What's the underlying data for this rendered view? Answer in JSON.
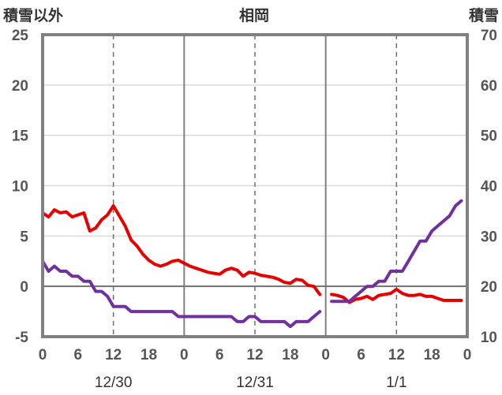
{
  "chart_data": {
    "type": "line",
    "title": "相岡",
    "ylabel_left": "積雪以外",
    "ylabel_right": "積雪",
    "y_left": {
      "min": -5,
      "max": 25,
      "ticks": [
        -5,
        0,
        5,
        10,
        15,
        20,
        25
      ]
    },
    "y_right": {
      "min": 10,
      "max": 70,
      "ticks": [
        10,
        20,
        30,
        40,
        50,
        60,
        70
      ]
    },
    "x": {
      "min": 0,
      "max": 72,
      "tick_hours": [
        0,
        6,
        12,
        18,
        24,
        30,
        36,
        42,
        48,
        54,
        60,
        66,
        72
      ],
      "tick_labels": [
        "0",
        "6",
        "12",
        "18",
        "0",
        "6",
        "12",
        "18",
        "0",
        "6",
        "12",
        "18",
        "0"
      ],
      "day_boundaries": [
        24,
        48
      ],
      "dashed_hours": [
        12,
        36,
        60
      ]
    },
    "date_labels": [
      {
        "label": "12/30",
        "hour": 12
      },
      {
        "label": "12/31",
        "hour": 36
      },
      {
        "label": "1/1",
        "hour": 60
      }
    ],
    "series": [
      {
        "color": "#e60000",
        "axis": "left",
        "segments": [
          [
            [
              0,
              7.3
            ],
            [
              1,
              6.9
            ],
            [
              2,
              7.6
            ],
            [
              3,
              7.3
            ],
            [
              4,
              7.4
            ],
            [
              5,
              6.9
            ],
            [
              6,
              7.1
            ],
            [
              7,
              7.3
            ],
            [
              8,
              5.5
            ],
            [
              9,
              5.8
            ],
            [
              10,
              6.6
            ],
            [
              11,
              7.1
            ],
            [
              12,
              8.0
            ],
            [
              13,
              7.0
            ],
            [
              14,
              6.0
            ],
            [
              15,
              4.6
            ],
            [
              16,
              4.0
            ],
            [
              17,
              3.2
            ],
            [
              18,
              2.6
            ],
            [
              19,
              2.2
            ],
            [
              20,
              2.0
            ],
            [
              21,
              2.2
            ],
            [
              22,
              2.5
            ],
            [
              23,
              2.6
            ],
            [
              24,
              2.3
            ],
            [
              25,
              2.0
            ],
            [
              26,
              1.8
            ],
            [
              27,
              1.6
            ],
            [
              28,
              1.4
            ],
            [
              29,
              1.3
            ],
            [
              30,
              1.2
            ],
            [
              31,
              1.6
            ],
            [
              32,
              1.8
            ],
            [
              33,
              1.6
            ],
            [
              34,
              1.0
            ],
            [
              35,
              1.4
            ],
            [
              36,
              1.3
            ],
            [
              37,
              1.1
            ],
            [
              38,
              1.0
            ],
            [
              39,
              0.9
            ],
            [
              40,
              0.7
            ],
            [
              41,
              0.4
            ],
            [
              42,
              0.3
            ],
            [
              43,
              0.7
            ],
            [
              44,
              0.6
            ],
            [
              45,
              0.1
            ],
            [
              46,
              0.0
            ],
            [
              47,
              -0.8
            ]
          ],
          [
            [
              49,
              -0.8
            ],
            [
              50,
              -0.9
            ],
            [
              51,
              -1.1
            ],
            [
              52,
              -1.6
            ],
            [
              53,
              -1.3
            ],
            [
              54,
              -1.2
            ],
            [
              55,
              -1.0
            ],
            [
              56,
              -1.3
            ],
            [
              57,
              -0.9
            ],
            [
              58,
              -0.8
            ],
            [
              59,
              -0.7
            ],
            [
              60,
              -0.3
            ],
            [
              61,
              -0.7
            ],
            [
              62,
              -0.9
            ],
            [
              63,
              -0.9
            ],
            [
              64,
              -0.8
            ],
            [
              65,
              -1.0
            ],
            [
              66,
              -1.0
            ],
            [
              67,
              -1.2
            ],
            [
              68,
              -1.4
            ],
            [
              69,
              -1.4
            ],
            [
              70,
              -1.4
            ],
            [
              71,
              -1.4
            ]
          ]
        ]
      },
      {
        "color": "#7030a0",
        "axis": "left",
        "segments": [
          [
            [
              0,
              2.5
            ],
            [
              1,
              1.5
            ],
            [
              2,
              2.0
            ],
            [
              3,
              1.5
            ],
            [
              4,
              1.5
            ],
            [
              5,
              1.0
            ],
            [
              6,
              1.0
            ],
            [
              7,
              0.5
            ],
            [
              8,
              0.5
            ],
            [
              9,
              -0.5
            ],
            [
              10,
              -0.5
            ],
            [
              11,
              -1.0
            ],
            [
              12,
              -2.0
            ],
            [
              13,
              -2.0
            ],
            [
              14,
              -2.0
            ],
            [
              15,
              -2.5
            ],
            [
              16,
              -2.5
            ],
            [
              17,
              -2.5
            ],
            [
              18,
              -2.5
            ],
            [
              19,
              -2.5
            ],
            [
              20,
              -2.5
            ],
            [
              21,
              -2.5
            ],
            [
              22,
              -2.5
            ],
            [
              23,
              -3.0
            ],
            [
              24,
              -3.0
            ],
            [
              25,
              -3.0
            ],
            [
              26,
              -3.0
            ],
            [
              27,
              -3.0
            ],
            [
              28,
              -3.0
            ],
            [
              29,
              -3.0
            ],
            [
              30,
              -3.0
            ],
            [
              31,
              -3.0
            ],
            [
              32,
              -3.0
            ],
            [
              33,
              -3.5
            ],
            [
              34,
              -3.5
            ],
            [
              35,
              -3.0
            ],
            [
              36,
              -3.0
            ],
            [
              37,
              -3.5
            ],
            [
              38,
              -3.5
            ],
            [
              39,
              -3.5
            ],
            [
              40,
              -3.5
            ],
            [
              41,
              -3.5
            ],
            [
              42,
              -4.0
            ],
            [
              43,
              -3.5
            ],
            [
              44,
              -3.5
            ],
            [
              45,
              -3.5
            ],
            [
              46,
              -3.0
            ],
            [
              47,
              -2.5
            ]
          ],
          [
            [
              49,
              -1.5
            ],
            [
              50,
              -1.5
            ],
            [
              51,
              -1.5
            ],
            [
              52,
              -1.5
            ],
            [
              53,
              -1.0
            ],
            [
              54,
              -0.5
            ],
            [
              55,
              0.0
            ],
            [
              56,
              0.0
            ],
            [
              57,
              0.5
            ],
            [
              58,
              0.5
            ],
            [
              59,
              1.5
            ],
            [
              60,
              1.5
            ],
            [
              61,
              1.5
            ],
            [
              62,
              2.5
            ],
            [
              63,
              3.5
            ],
            [
              64,
              4.5
            ],
            [
              65,
              4.5
            ],
            [
              66,
              5.5
            ],
            [
              67,
              6.0
            ],
            [
              68,
              6.5
            ],
            [
              69,
              7.0
            ],
            [
              70,
              8.0
            ],
            [
              71,
              8.5
            ]
          ]
        ]
      }
    ]
  }
}
